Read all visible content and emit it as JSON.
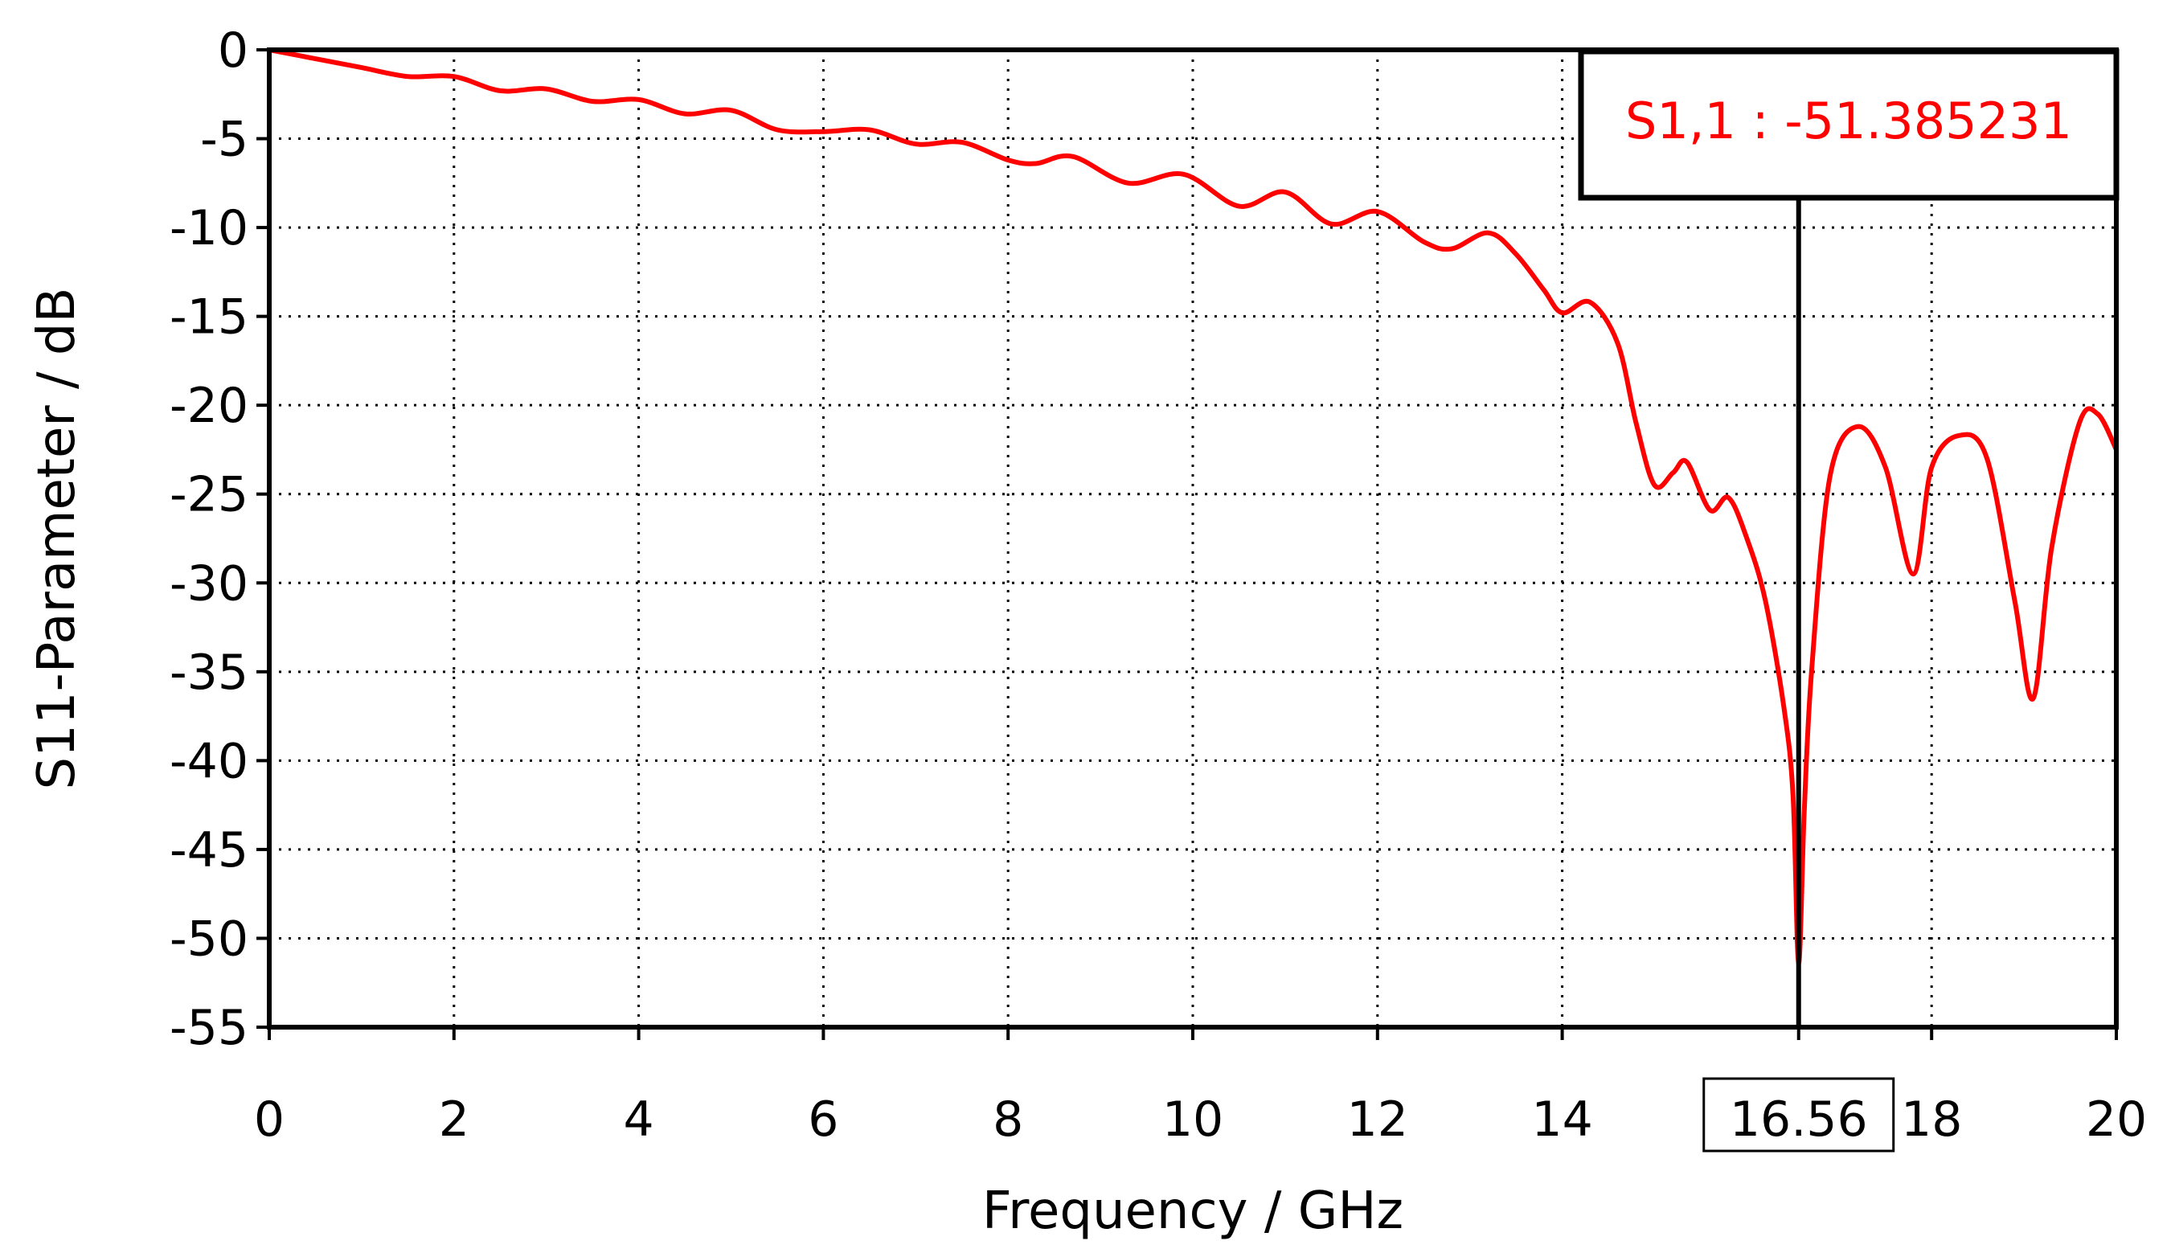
{
  "chart_data": {
    "type": "line",
    "title": "",
    "xlabel": "Frequency / GHz",
    "ylabel": "S11-Parameter / dB",
    "xlim": [
      0,
      20
    ],
    "ylim": [
      -55,
      0
    ],
    "x_ticks": [
      "0",
      "2",
      "4",
      "6",
      "8",
      "10",
      "12",
      "14",
      "16.56",
      "18",
      "20"
    ],
    "y_ticks": [
      "0",
      "-5",
      "-10",
      "-15",
      "-20",
      "-25",
      "-30",
      "-35",
      "-40",
      "-45",
      "-50",
      "-55"
    ],
    "grid": true,
    "line_color": "#ff0000",
    "marker": {
      "x": 16.56,
      "x_label": "16.56",
      "label": "S1,1 : -51.385231",
      "value": -51.385231,
      "line_color": "#000000",
      "text_color": "#ff0000"
    },
    "series": [
      {
        "x": [
          0,
          0.5,
          1,
          1.5,
          2,
          2.5,
          3,
          3.5,
          4,
          4.5,
          5,
          5.5,
          6,
          6.5,
          7,
          7.5,
          8,
          8.3,
          8.7,
          9.3,
          9.9,
          10.5,
          11,
          11.5,
          12,
          12.5,
          12.8,
          13.2,
          13.5,
          13.8,
          14.0,
          14.3,
          14.6,
          14.8,
          15.0,
          15.2,
          15.35,
          15.6,
          15.8,
          16.0,
          16.2,
          16.4,
          16.5,
          16.56,
          16.62,
          16.7,
          16.9,
          17.2,
          17.5,
          17.8,
          18.0,
          18.3,
          18.6,
          18.9,
          19.1,
          19.3,
          19.6,
          19.8,
          20.0
        ],
        "y": [
          0,
          -0.5,
          -1,
          -1.5,
          -1.5,
          -2.3,
          -2.2,
          -2.9,
          -2.8,
          -3.6,
          -3.4,
          -4.5,
          -4.6,
          -4.5,
          -5.3,
          -5.2,
          -6.2,
          -6.4,
          -6.0,
          -7.5,
          -7.0,
          -8.8,
          -8.0,
          -9.8,
          -9.1,
          -10.8,
          -11.2,
          -10.3,
          -11.5,
          -13.5,
          -14.8,
          -14.2,
          -16.5,
          -21.0,
          -24.5,
          -23.8,
          -23.2,
          -25.9,
          -25.2,
          -27.5,
          -31.0,
          -37.0,
          -42.0,
          -51.385231,
          -43.0,
          -35.0,
          -24.0,
          -21.2,
          -23.5,
          -29.5,
          -23.5,
          -21.7,
          -23.0,
          -31.0,
          -36.5,
          -28.0,
          -21.0,
          -20.5,
          -22.5
        ]
      }
    ]
  }
}
